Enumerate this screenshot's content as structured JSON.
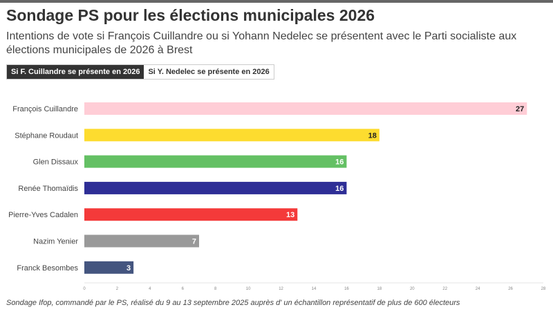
{
  "title": "Sondage PS pour les élections municipales 2026",
  "subtitle": "Intentions de vote si François Cuillandre ou si Yohann Nedelec se présentent avec le Parti socialiste aux élections municipales de 2026 à Brest",
  "tabs": [
    {
      "label": "Si F. Cuillandre se présente en 2026",
      "active": true
    },
    {
      "label": "Si Y. Nedelec se présente en 2026",
      "active": false
    }
  ],
  "footnote": "Sondage Ifop, commandé par le PS, réalisé du 9 au 13 septembre 2025 auprès d' un échantillon représentatif de plus de 600 électeurs",
  "chart_data": {
    "type": "bar",
    "orientation": "horizontal",
    "categories": [
      "François Cuillandre",
      "Stéphane Roudaut",
      "Glen Dissaux",
      "Renée Thomaïdis",
      "Pierre-Yves Cadalen",
      "Nazim Yenier",
      "Franck Besombes"
    ],
    "values": [
      27,
      18,
      16,
      16,
      13,
      7,
      3
    ],
    "colors": [
      "#ffcdd6",
      "#fddc2f",
      "#64c064",
      "#2e2e96",
      "#f43a3a",
      "#999999",
      "#44557f"
    ],
    "label_colors": [
      "#222222",
      "#222222",
      "#ffffff",
      "#ffffff",
      "#ffffff",
      "#ffffff",
      "#ffffff"
    ],
    "xlim": [
      0,
      28
    ],
    "xticks": [
      "0",
      "2",
      "4",
      "6",
      "8",
      "10",
      "12",
      "14",
      "16",
      "18",
      "20",
      "22",
      "24",
      "26",
      "28"
    ],
    "grid": false
  }
}
